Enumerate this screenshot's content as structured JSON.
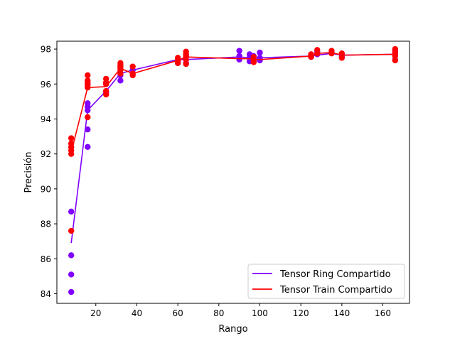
{
  "chart_data": {
    "type": "scatter",
    "title": "",
    "xlabel": "Rango",
    "ylabel": "Precisión",
    "xlim": [
      1.0,
      173.0
    ],
    "ylim": [
      83.45,
      98.45
    ],
    "xticks": [
      20,
      40,
      60,
      80,
      100,
      120,
      140,
      160
    ],
    "yticks": [
      84,
      86,
      88,
      90,
      92,
      94,
      96,
      98
    ],
    "grid": false,
    "legend_position": "lower-right",
    "series": [
      {
        "name": "Tensor Ring Compartido",
        "color": "#8000ff",
        "line": [
          [
            8,
            86.9
          ],
          [
            16,
            94.5
          ],
          [
            25,
            95.6
          ],
          [
            32,
            96.6
          ],
          [
            38,
            96.8
          ],
          [
            60,
            97.4
          ],
          [
            64,
            97.4
          ],
          [
            90,
            97.55
          ],
          [
            95,
            97.5
          ],
          [
            97,
            97.45
          ],
          [
            100,
            97.5
          ],
          [
            125,
            97.6
          ],
          [
            128,
            97.65
          ],
          [
            135,
            97.75
          ],
          [
            140,
            97.65
          ],
          [
            166,
            97.7
          ]
        ],
        "points": [
          [
            8,
            84.1
          ],
          [
            8,
            85.1
          ],
          [
            8,
            86.2
          ],
          [
            8,
            88.7
          ],
          [
            8,
            92.4
          ],
          [
            16,
            92.4
          ],
          [
            16,
            93.4
          ],
          [
            16,
            94.5
          ],
          [
            16,
            94.7
          ],
          [
            16,
            94.9
          ],
          [
            16,
            96.0
          ],
          [
            25,
            95.5
          ],
          [
            25,
            96.0
          ],
          [
            32,
            96.2
          ],
          [
            32,
            96.5
          ],
          [
            32,
            97.0
          ],
          [
            38,
            96.8
          ],
          [
            60,
            97.2
          ],
          [
            60,
            97.3
          ],
          [
            64,
            97.2
          ],
          [
            64,
            97.6
          ],
          [
            90,
            97.4
          ],
          [
            90,
            97.6
          ],
          [
            90,
            97.9
          ],
          [
            95,
            97.3
          ],
          [
            95,
            97.5
          ],
          [
            95,
            97.7
          ],
          [
            97,
            97.3
          ],
          [
            97,
            97.6
          ],
          [
            100,
            97.35
          ],
          [
            100,
            97.5
          ],
          [
            100,
            97.8
          ],
          [
            125,
            97.55
          ],
          [
            125,
            97.7
          ],
          [
            128,
            97.7
          ],
          [
            128,
            97.85
          ],
          [
            135,
            97.8
          ],
          [
            140,
            97.55
          ],
          [
            140,
            97.7
          ],
          [
            166,
            97.4
          ],
          [
            166,
            97.7
          ],
          [
            166,
            97.9
          ]
        ]
      },
      {
        "name": "Tensor Train Compartido",
        "color": "#ff0000",
        "line": [
          [
            8,
            92.1
          ],
          [
            16,
            95.8
          ],
          [
            25,
            95.85
          ],
          [
            32,
            96.9
          ],
          [
            38,
            96.6
          ],
          [
            60,
            97.35
          ],
          [
            64,
            97.55
          ],
          [
            90,
            97.45
          ],
          [
            95,
            97.45
          ],
          [
            97,
            97.4
          ],
          [
            100,
            97.4
          ],
          [
            125,
            97.6
          ],
          [
            128,
            97.75
          ],
          [
            135,
            97.8
          ],
          [
            140,
            97.65
          ],
          [
            166,
            97.7
          ]
        ],
        "points": [
          [
            8,
            87.6
          ],
          [
            8,
            92.0
          ],
          [
            8,
            92.2
          ],
          [
            8,
            92.4
          ],
          [
            8,
            92.6
          ],
          [
            8,
            92.9
          ],
          [
            16,
            94.1
          ],
          [
            16,
            95.8
          ],
          [
            16,
            95.95
          ],
          [
            16,
            96.1
          ],
          [
            16,
            96.2
          ],
          [
            16,
            96.5
          ],
          [
            25,
            95.4
          ],
          [
            25,
            95.6
          ],
          [
            25,
            96.0
          ],
          [
            25,
            96.1
          ],
          [
            25,
            96.3
          ],
          [
            32,
            96.6
          ],
          [
            32,
            96.8
          ],
          [
            32,
            96.9
          ],
          [
            32,
            97.0
          ],
          [
            32,
            97.1
          ],
          [
            32,
            97.2
          ],
          [
            38,
            96.5
          ],
          [
            38,
            96.6
          ],
          [
            38,
            97.0
          ],
          [
            60,
            97.2
          ],
          [
            60,
            97.35
          ],
          [
            60,
            97.5
          ],
          [
            64,
            97.15
          ],
          [
            64,
            97.4
          ],
          [
            64,
            97.55
          ],
          [
            64,
            97.7
          ],
          [
            64,
            97.85
          ],
          [
            97,
            97.25
          ],
          [
            97,
            97.4
          ],
          [
            97,
            97.55
          ],
          [
            125,
            97.55
          ],
          [
            125,
            97.7
          ],
          [
            128,
            97.75
          ],
          [
            128,
            97.95
          ],
          [
            135,
            97.75
          ],
          [
            135,
            97.9
          ],
          [
            140,
            97.5
          ],
          [
            140,
            97.75
          ],
          [
            166,
            97.35
          ],
          [
            166,
            97.6
          ],
          [
            166,
            97.8
          ],
          [
            166,
            98.0
          ]
        ]
      }
    ]
  }
}
